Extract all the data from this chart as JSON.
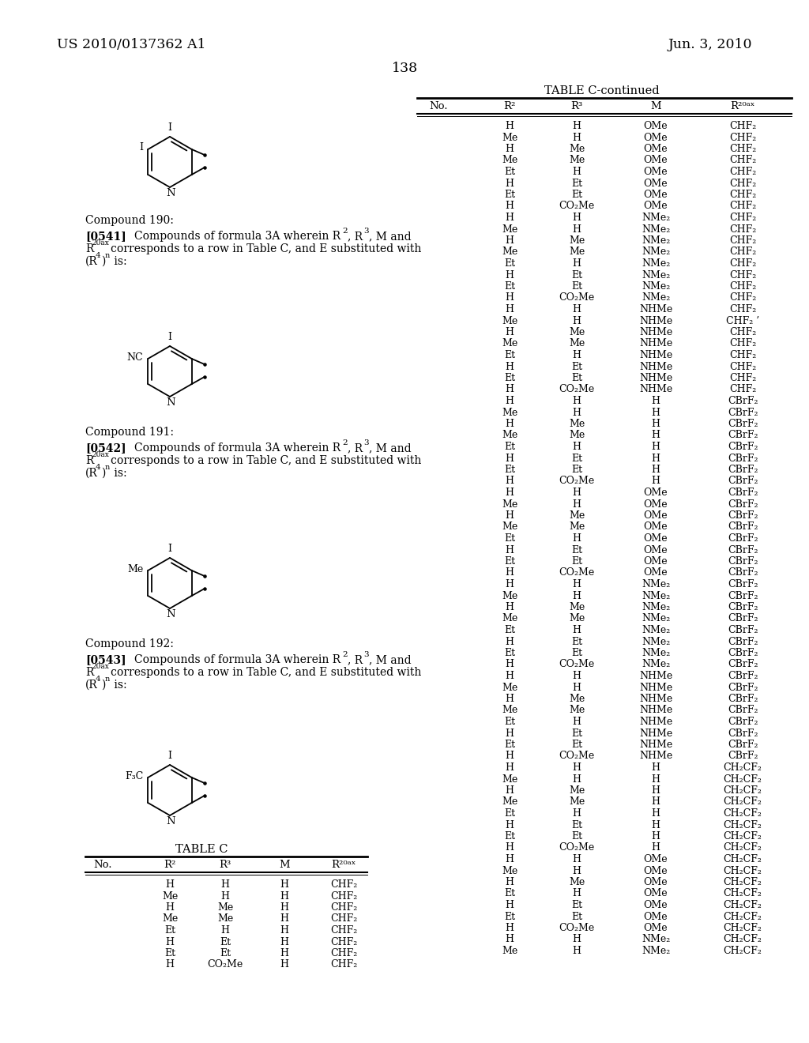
{
  "page_number": "138",
  "header_left": "US 2010/0137362 A1",
  "header_right": "Jun. 3, 2010",
  "background_color": "#ffffff"
}
